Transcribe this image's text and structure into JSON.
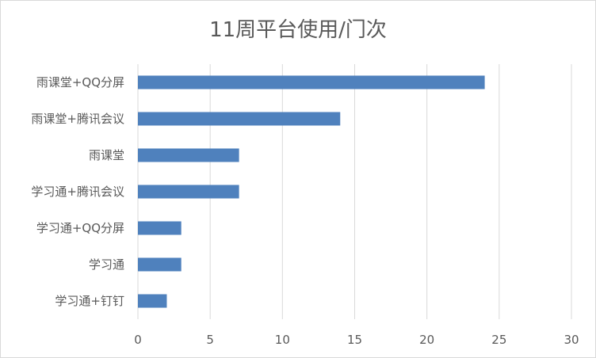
{
  "chart_data": {
    "type": "bar",
    "orientation": "horizontal",
    "title": "11周平台使用/门次",
    "categories": [
      "雨课堂+QQ分屏",
      "雨课堂+腾讯会议",
      "雨课堂",
      "学习通+腾讯会议",
      "学习通+QQ分屏",
      "学习通",
      "学习通+钉钉"
    ],
    "values": [
      24,
      14,
      7,
      7,
      3,
      3,
      2
    ],
    "xlim": [
      0,
      30
    ],
    "xticks": [
      0,
      5,
      10,
      15,
      20,
      25,
      30
    ],
    "xlabel": "",
    "ylabel": "",
    "grid": "vertical",
    "legend": "none",
    "bar_color": "#4f81bd",
    "grid_color": "#d9d9d9"
  }
}
